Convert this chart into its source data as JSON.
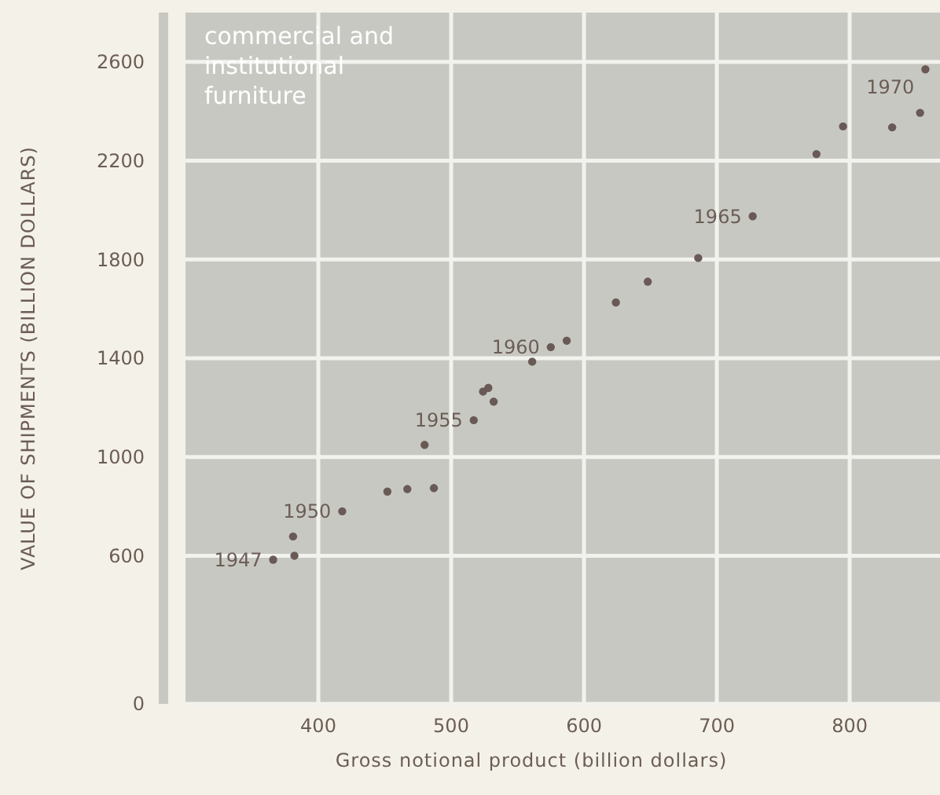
{
  "chart_data": {
    "type": "scatter",
    "title": "commercial and institutional furniture",
    "xlabel": "Gross notional product (billion dollars)",
    "ylabel": "VALUE OF SHIPMENTS (BILLION DOLLARS)",
    "x": [
      366,
      382,
      381,
      418,
      452,
      467,
      487,
      480,
      517,
      524,
      528,
      532,
      561,
      575,
      587,
      624,
      648,
      686,
      727,
      775,
      795,
      832,
      853,
      857
    ],
    "series": [
      {
        "color": "#6a5a55",
        "values": [
          584,
          600,
          678,
          780,
          860,
          870,
          874,
          1049,
          1149,
          1265,
          1280,
          1224,
          1386,
          1445,
          1471,
          1626,
          1710,
          1806,
          1975,
          2227,
          2339,
          2335,
          2394,
          2570
        ]
      }
    ],
    "xlim": [
      300,
      868
    ],
    "ylim": [
      0,
      2800
    ],
    "xticks": [
      400,
      500,
      600,
      700,
      800
    ],
    "yticks": [
      0,
      600,
      1000,
      1400,
      1800,
      2200,
      2600
    ],
    "grid": true,
    "marker": "circle",
    "annotations": [
      {
        "text": "1947",
        "x": 366,
        "y": 584
      },
      {
        "text": "1950",
        "x": 418,
        "y": 780
      },
      {
        "text": "1955",
        "x": 517,
        "y": 1149
      },
      {
        "text": "1960",
        "x": 575,
        "y": 1445
      },
      {
        "text": "1965",
        "x": 727,
        "y": 1975
      },
      {
        "text": "1970",
        "x": 857,
        "y": 2570
      }
    ]
  }
}
